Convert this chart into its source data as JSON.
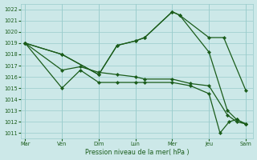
{
  "xlabel": "Pression niveau de la mer( hPa )",
  "bg_color": "#cce8e8",
  "grid_color": "#99cccc",
  "line_color": "#1a5c1a",
  "ylim": [
    1010.5,
    1022.5
  ],
  "yticks": [
    1011,
    1012,
    1013,
    1014,
    1015,
    1016,
    1017,
    1018,
    1019,
    1020,
    1021,
    1022
  ],
  "x_labels": [
    "Mar",
    "Ven",
    "Dim",
    "Lun",
    "Mer",
    "Jeu",
    "Sam"
  ],
  "x_positions": [
    0,
    1,
    2,
    3,
    4,
    5,
    6
  ],
  "series1_x": [
    0,
    1,
    2,
    2.5,
    3,
    3.25,
    4,
    4.2,
    5,
    5.4,
    6
  ],
  "series1_y": [
    1019.0,
    1018.0,
    1016.2,
    1018.8,
    1019.2,
    1019.5,
    1021.8,
    1021.5,
    1019.5,
    1019.5,
    1014.8
  ],
  "series2_x": [
    0,
    1,
    2,
    2.5,
    3,
    3.25,
    4,
    4.2,
    5,
    5.5,
    5.75,
    6
  ],
  "series2_y": [
    1019.0,
    1018.0,
    1016.2,
    1018.8,
    1019.2,
    1019.5,
    1021.8,
    1021.5,
    1018.2,
    1013.0,
    1012.2,
    1011.8
  ],
  "series3_x": [
    0,
    1,
    1.5,
    2,
    2.5,
    3,
    3.25,
    4,
    4.5,
    5,
    5.5,
    5.75,
    6
  ],
  "series3_y": [
    1019.0,
    1016.6,
    1016.9,
    1016.4,
    1016.2,
    1016.0,
    1015.8,
    1015.8,
    1015.4,
    1015.2,
    1012.6,
    1012.0,
    1011.8
  ],
  "series4_x": [
    0,
    1,
    1.5,
    2,
    2.5,
    3,
    3.25,
    4,
    4.5,
    5,
    5.3,
    5.55,
    5.75,
    6
  ],
  "series4_y": [
    1019.0,
    1015.0,
    1016.6,
    1015.5,
    1015.5,
    1015.5,
    1015.5,
    1015.5,
    1015.2,
    1014.5,
    1011.0,
    1012.0,
    1012.2,
    1011.8
  ],
  "marker_size": 2.2,
  "linewidth": 0.9
}
